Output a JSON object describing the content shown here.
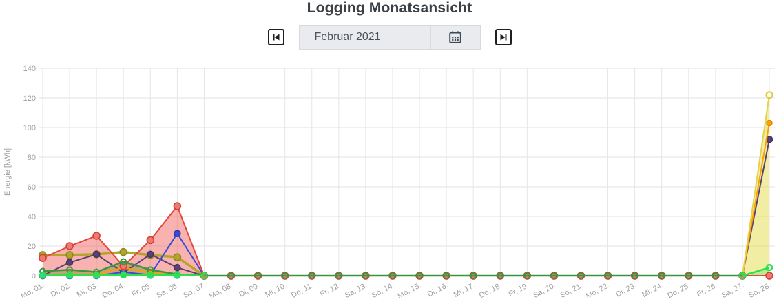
{
  "header": {
    "title": "Logging Monatsansicht"
  },
  "nav": {
    "period_value": "Februar 2021",
    "prev_button": "previous-month",
    "next_button": "next-month",
    "calendar_button": "open-date-picker"
  },
  "chart_data": {
    "type": "area",
    "title": "Logging Monatsansicht",
    "xlabel": "",
    "ylabel": "Energie [kWh]",
    "ylim": [
      0,
      140
    ],
    "yticks": [
      0,
      20,
      40,
      60,
      80,
      100,
      120,
      140
    ],
    "grid": true,
    "legend_position": "none",
    "categories": [
      "Mo, 01.",
      "Di, 02.",
      "Mi, 03.",
      "Do, 04.",
      "Fr, 05.",
      "Sa, 06.",
      "So, 07.",
      "Mo, 08.",
      "Di, 09.",
      "Mi, 10.",
      "Do, 11.",
      "Fr, 12.",
      "Sa, 13.",
      "So, 14.",
      "Mo, 15.",
      "Di, 16.",
      "Mi, 17.",
      "Do, 18.",
      "Fr, 19.",
      "Sa, 20.",
      "So, 21.",
      "Mo, 22.",
      "Di, 23.",
      "Mi, 24.",
      "Do, 25.",
      "Fr, 26.",
      "Sa, 27.",
      "So, 28."
    ],
    "series": [
      {
        "name": "olive",
        "color": "#b1a52c",
        "line_width": 3.5,
        "marker": {
          "r": 5,
          "fill": "#b1a52c",
          "stroke": "#8f8420",
          "sw": 1.5
        },
        "area_color": null,
        "values": [
          14,
          14,
          14.5,
          16,
          14,
          12.5,
          0,
          null,
          null,
          null,
          null,
          null,
          null,
          null,
          null,
          null,
          null,
          null,
          null,
          null,
          null,
          null,
          null,
          null,
          null,
          null,
          null,
          null
        ]
      },
      {
        "name": "purple",
        "color": "#5a4076",
        "line_width": 2,
        "marker": {
          "r": 4.5,
          "fill": "#5a4076",
          "stroke": "#453061",
          "sw": 1.5
        },
        "area_color": null,
        "values": [
          0,
          9,
          14.5,
          2,
          14.5,
          5.5,
          0,
          null,
          null,
          null,
          null,
          null,
          null,
          null,
          null,
          null,
          null,
          null,
          null,
          null,
          null,
          null,
          null,
          null,
          null,
          null,
          0,
          92
        ]
      },
      {
        "name": "blue",
        "color": "#3c48d6",
        "line_width": 2,
        "marker": {
          "r": 4.5,
          "fill": "#3c48d6",
          "stroke": "#2d36a8",
          "sw": 1.5
        },
        "area_color": null,
        "values": [
          0,
          0,
          0,
          2.5,
          0.5,
          28.5,
          0,
          null,
          null,
          null,
          null,
          null,
          null,
          null,
          null,
          null,
          null,
          null,
          null,
          null,
          null,
          null,
          null,
          null,
          null,
          null,
          null,
          null
        ]
      },
      {
        "name": "orange",
        "color": "#ffa000",
        "line_width": 2,
        "marker": {
          "r": 4,
          "fill": "#ffa000",
          "stroke": "#dd8800",
          "sw": 1.5
        },
        "area_color": null,
        "values": [
          0.5,
          1,
          1,
          5.5,
          2,
          0.5,
          0,
          null,
          null,
          null,
          null,
          null,
          null,
          null,
          null,
          null,
          null,
          null,
          null,
          null,
          null,
          null,
          null,
          null,
          null,
          null,
          0,
          103
        ]
      },
      {
        "name": "yellow",
        "color": "#e4d345",
        "line_width": 2,
        "marker": {
          "r": 4.5,
          "fill": "#fffdf0",
          "stroke": "#ddc93e",
          "sw": 2
        },
        "area_color": "rgba(230,222,88,0.55)",
        "values": [
          null,
          null,
          null,
          null,
          null,
          null,
          null,
          null,
          null,
          null,
          null,
          null,
          null,
          null,
          null,
          null,
          null,
          null,
          null,
          null,
          null,
          null,
          null,
          null,
          null,
          null,
          0,
          122
        ]
      },
      {
        "name": "red",
        "color": "#e2473d",
        "line_width": 2,
        "marker": {
          "r": 5,
          "fill": "#e87c72",
          "stroke": "#d93a30",
          "sw": 1.5
        },
        "area_color": "rgba(240,85,80,0.45)",
        "values": [
          12,
          20,
          27,
          6.5,
          24,
          47,
          0,
          0,
          0,
          0,
          0,
          0,
          0,
          0,
          0,
          0,
          0,
          0,
          0,
          0,
          0,
          0,
          0,
          0,
          0,
          0,
          0,
          0
        ]
      },
      {
        "name": "dark-green",
        "color": "#3d9440",
        "line_width": 2.5,
        "marker": {
          "r": 4,
          "fill": "none",
          "stroke": "#3d9440",
          "sw": 2
        },
        "area_color": "rgba(120,140,45,0.42)",
        "values": [
          3,
          4,
          2.5,
          9.5,
          4,
          1,
          0,
          0,
          0,
          0,
          0,
          0,
          0,
          0,
          0,
          0,
          0,
          0,
          0,
          0,
          0,
          0,
          0,
          0,
          0,
          0,
          0,
          null
        ]
      },
      {
        "name": "cyan",
        "color": "#2fd0e0",
        "line_width": 1.5,
        "marker": {
          "r": 4,
          "fill": "#2fd0e0",
          "stroke": "#1ba7b6",
          "sw": 1.5
        },
        "area_color": null,
        "values": [
          0,
          0,
          0,
          1,
          0.5,
          0,
          null,
          null,
          null,
          null,
          null,
          null,
          null,
          null,
          null,
          null,
          null,
          null,
          null,
          null,
          null,
          null,
          null,
          null,
          null,
          null,
          null,
          null
        ]
      },
      {
        "name": "bright-green",
        "color": "#2ee04e",
        "line_width": 2.5,
        "marker": {
          "r": 4,
          "fill": "none",
          "stroke": "#2ee04e",
          "sw": 2.5
        },
        "area_color": "rgba(90,235,110,0.40)",
        "values": [
          0.3,
          0.3,
          0.3,
          0.5,
          0.3,
          0.5,
          0,
          null,
          null,
          null,
          null,
          null,
          null,
          null,
          null,
          null,
          null,
          null,
          null,
          null,
          null,
          null,
          null,
          null,
          null,
          null,
          0,
          5.5
        ]
      }
    ]
  }
}
